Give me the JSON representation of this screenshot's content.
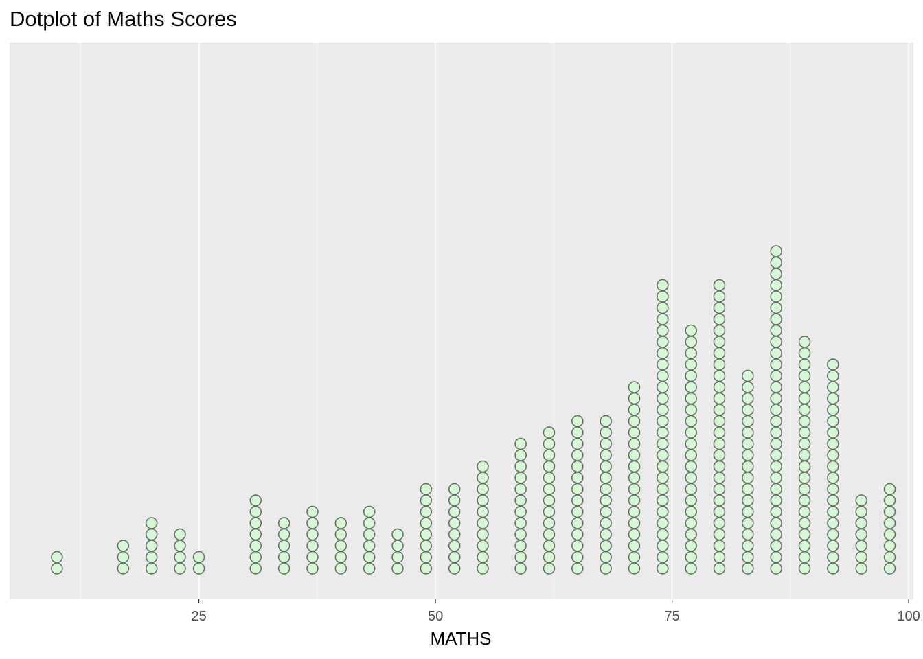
{
  "chart_data": {
    "type": "dotplot",
    "title": "Dotplot of Maths Scores",
    "xlabel": "MATHS",
    "ylabel": "",
    "xlim": [
      5,
      100.5
    ],
    "x_ticks": [
      25,
      50,
      75,
      100
    ],
    "x_tick_labels": [
      "25",
      "50",
      "75",
      "100"
    ],
    "grid": true,
    "y_axis_shown": false,
    "colors": {
      "panel_bg": "#ebebeb",
      "grid_major": "#ffffff",
      "dot_fill": "#d8f5d8",
      "dot_stroke": "#5a6b5a",
      "text": "#000000",
      "tick_text": "#4d4d4d"
    },
    "bins": [
      {
        "x": 10,
        "count": 2
      },
      {
        "x": 17,
        "count": 3
      },
      {
        "x": 20,
        "count": 5
      },
      {
        "x": 23,
        "count": 4
      },
      {
        "x": 25,
        "count": 2
      },
      {
        "x": 31,
        "count": 7
      },
      {
        "x": 34,
        "count": 5
      },
      {
        "x": 37,
        "count": 6
      },
      {
        "x": 40,
        "count": 5
      },
      {
        "x": 43,
        "count": 6
      },
      {
        "x": 46,
        "count": 4
      },
      {
        "x": 49,
        "count": 8
      },
      {
        "x": 52,
        "count": 8
      },
      {
        "x": 55,
        "count": 10
      },
      {
        "x": 59,
        "count": 12
      },
      {
        "x": 62,
        "count": 13
      },
      {
        "x": 65,
        "count": 14
      },
      {
        "x": 68,
        "count": 14
      },
      {
        "x": 71,
        "count": 17
      },
      {
        "x": 74,
        "count": 26
      },
      {
        "x": 77,
        "count": 22
      },
      {
        "x": 80,
        "count": 26
      },
      {
        "x": 83,
        "count": 18
      },
      {
        "x": 86,
        "count": 29
      },
      {
        "x": 89,
        "count": 21
      },
      {
        "x": 92,
        "count": 19
      },
      {
        "x": 95,
        "count": 7
      },
      {
        "x": 98,
        "count": 8
      }
    ]
  }
}
